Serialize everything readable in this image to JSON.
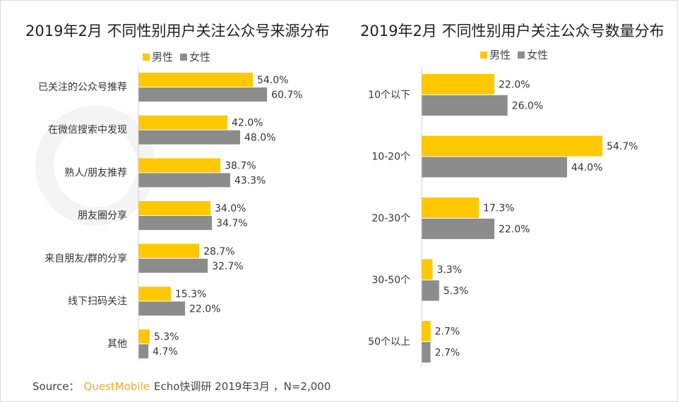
{
  "watermark": "QUESTMOBILE",
  "colors": {
    "male": "#FFC800",
    "female": "#8C8C8C"
  },
  "source": {
    "label": "Source：",
    "brand": "QuestMobile",
    "text": "Echo快调研 2019年3月 ，N=2,000"
  },
  "chart_data": [
    {
      "type": "bar",
      "orientation": "horizontal",
      "title": "2019年2月 不同性别用户关注公众号来源分布",
      "legend": {
        "position": "top",
        "entries": [
          "男性",
          "女性"
        ]
      },
      "categories": [
        "已关注的公众号推荐",
        "在微信搜索中发现",
        "熟人/朋友推荐",
        "朋友圈分享",
        "来自朋友/群的分享",
        "线下扫码关注",
        "其他"
      ],
      "series": [
        {
          "name": "男性",
          "values": [
            54.0,
            42.0,
            38.7,
            34.0,
            28.7,
            15.3,
            5.3
          ]
        },
        {
          "name": "女性",
          "values": [
            60.7,
            48.0,
            43.3,
            34.7,
            32.7,
            22.0,
            4.7
          ]
        }
      ],
      "unit": "%",
      "grid": false
    },
    {
      "type": "bar",
      "orientation": "horizontal",
      "title": "2019年2月 不同性别用户关注公众号数量分布",
      "legend": {
        "position": "top",
        "entries": [
          "男性",
          "女性"
        ]
      },
      "categories": [
        "10个以下",
        "10-20个",
        "20-30个",
        "30-50个",
        "50个以上"
      ],
      "series": [
        {
          "name": "男性",
          "values": [
            22.0,
            54.7,
            17.3,
            3.3,
            2.7
          ]
        },
        {
          "name": "女性",
          "values": [
            26.0,
            44.0,
            22.0,
            5.3,
            2.7
          ]
        }
      ],
      "unit": "%",
      "grid": false
    }
  ]
}
